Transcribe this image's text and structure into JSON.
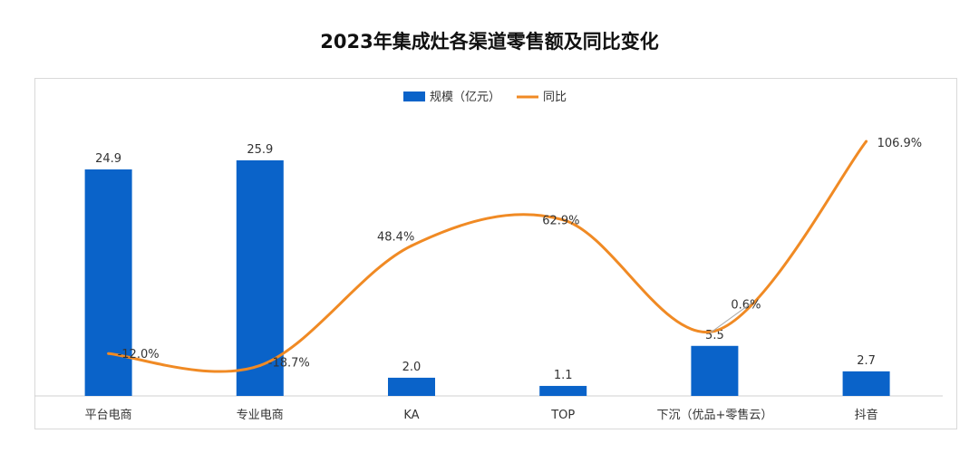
{
  "chart_data": {
    "type": "bar",
    "title": "2023年集成灶各渠道零售额及同比变化",
    "categories": [
      "平台电商",
      "专业电商",
      "KA",
      "TOP",
      "下沉（优品+零售云）",
      "抖音"
    ],
    "series": [
      {
        "name": "规模（亿元）",
        "type": "bar",
        "values": [
          24.9,
          25.9,
          2.0,
          1.1,
          5.5,
          2.7
        ],
        "labels": [
          "24.9",
          "25.9",
          "2.0",
          "1.1",
          "5.5",
          "2.7"
        ]
      },
      {
        "name": "同比",
        "type": "line",
        "values": [
          -12.0,
          -18.7,
          48.4,
          62.9,
          0.6,
          106.9
        ],
        "labels": [
          "-12.0%",
          "-18.7%",
          "48.4%",
          "62.9%",
          "0.6%",
          "106.9%"
        ]
      }
    ],
    "legend": {
      "position": "top-center"
    },
    "colors": {
      "bar": "#0a63c9",
      "line": "#f08a24",
      "axis": "#d0d0d0",
      "frame": "#d9d9d9"
    }
  }
}
